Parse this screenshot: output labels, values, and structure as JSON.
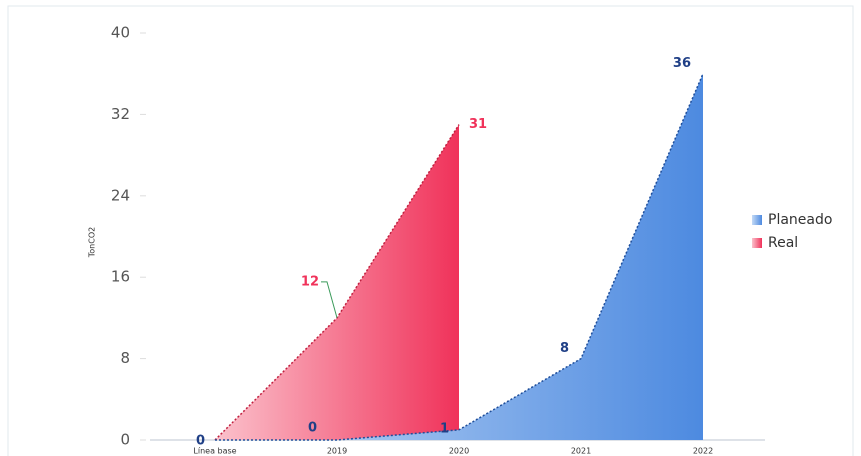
{
  "chart_data": {
    "type": "area",
    "y_axis_label": "TonCO2",
    "categories": [
      "Línea base",
      "2019",
      "2020",
      "2021",
      "2022"
    ],
    "series": [
      {
        "name": "Planeado",
        "color": "#5b95e0",
        "values": [
          0,
          0,
          1,
          8,
          36
        ]
      },
      {
        "name": "Real",
        "color": "#f0325a",
        "values": [
          0,
          12,
          31,
          null,
          null
        ]
      }
    ],
    "ylim": [
      0,
      40
    ],
    "yticks": [
      0,
      8,
      16,
      24,
      32,
      40
    ],
    "legend": "right"
  }
}
